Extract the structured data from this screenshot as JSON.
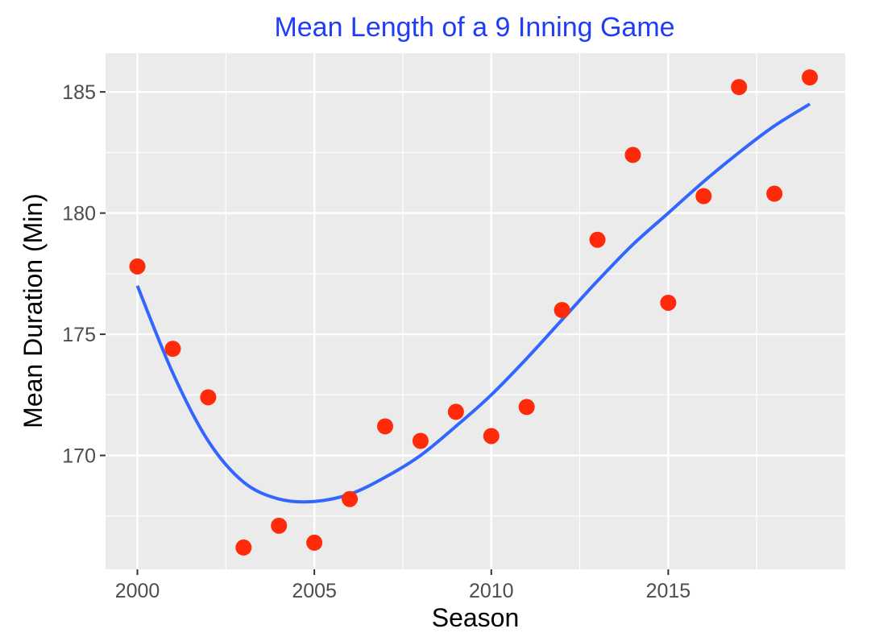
{
  "chart_data": {
    "type": "scatter",
    "title": "Mean Length of a 9 Inning Game",
    "xlabel": "Season",
    "ylabel": "Mean Duration (Min)",
    "xlim": [
      1999.1,
      2020.0
    ],
    "ylim": [
      165.3,
      186.6
    ],
    "xticks": [
      2000,
      2005,
      2010,
      2015
    ],
    "yticks": [
      170,
      175,
      180,
      185
    ],
    "grid": true,
    "legend": "none",
    "colors": {
      "title": "#1f3df5",
      "points": "#ff2a0a",
      "smooth": "#3366ff",
      "panel": "#ebebeb",
      "grid": "#ffffff",
      "axis_text": "#4d4d4d",
      "axis_title": "#000000"
    },
    "series": [
      {
        "kind": "points",
        "x": [
          2000,
          2001,
          2002,
          2003,
          2004,
          2005,
          2006,
          2007,
          2008,
          2009,
          2010,
          2011,
          2012,
          2013,
          2014,
          2015,
          2016,
          2017,
          2018,
          2019
        ],
        "values": [
          177.8,
          174.4,
          172.4,
          166.2,
          167.1,
          166.4,
          168.2,
          171.2,
          170.6,
          171.8,
          170.8,
          172.0,
          176.0,
          178.9,
          182.4,
          176.3,
          180.7,
          185.2,
          180.8,
          185.6
        ]
      },
      {
        "kind": "smooth",
        "x": [
          2000,
          2001,
          2002,
          2003,
          2004,
          2005,
          2006,
          2007,
          2008,
          2009,
          2010,
          2011,
          2012,
          2013,
          2014,
          2015,
          2016,
          2017,
          2018,
          2019
        ],
        "values": [
          177.0,
          173.4,
          170.6,
          168.9,
          168.2,
          168.1,
          168.4,
          169.1,
          170.0,
          171.2,
          172.5,
          174.0,
          175.6,
          177.2,
          178.7,
          180.0,
          181.3,
          182.5,
          183.6,
          184.5
        ]
      }
    ]
  }
}
